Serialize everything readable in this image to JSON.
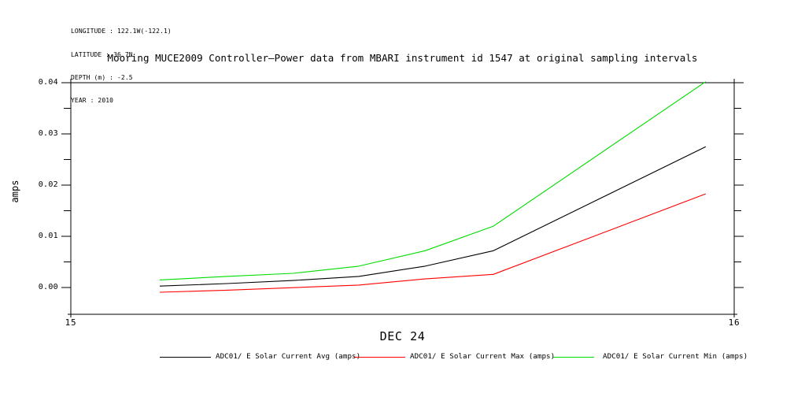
{
  "metadata": {
    "lines": [
      "LONGITUDE : 122.1W(-122.1)",
      "LATITUDE : 36.7N",
      "DEPTH (m) : -2.5",
      "YEAR : 2010"
    ]
  },
  "chart_data": {
    "type": "line",
    "title": "Mooring MUCE2009 Controller–Power data from MBARI instrument id 1547 at original sampling intervals",
    "ylabel": "amps",
    "xlabel": "DEC 24",
    "xlim": [
      15,
      16
    ],
    "ylim": [
      -0.0052,
      0.04
    ],
    "grid": false,
    "legend_position": "bottom",
    "x_ticks": [
      {
        "value": 15,
        "label": "15"
      },
      {
        "value": 16,
        "label": "16"
      }
    ],
    "y_ticks": [
      {
        "value": 0.0,
        "label": "0.00"
      },
      {
        "value": 0.01,
        "label": "0.01"
      },
      {
        "value": 0.02,
        "label": "0.02"
      },
      {
        "value": 0.03,
        "label": "0.03"
      },
      {
        "value": 0.04,
        "label": "0.04"
      }
    ],
    "y_minor_tick_step": 0.005,
    "x": [
      15.134,
      15.235,
      15.335,
      15.434,
      15.534,
      15.637,
      15.957
    ],
    "series": [
      {
        "name": "ADC01/ E Solar Current Avg (amps)",
        "color": "#000000",
        "values": [
          0.0003,
          0.0008,
          0.0014,
          0.0022,
          0.0042,
          0.0072,
          0.0275
        ]
      },
      {
        "name": "ADC01/ E Solar Current Max (amps)",
        "color": "#ff0000",
        "values": [
          -0.0009,
          -0.0005,
          0.0,
          0.0005,
          0.0017,
          0.0026,
          0.0183
        ]
      },
      {
        "name": "ADC01/ E Solar Current Min (amps)",
        "color": "#00dd00",
        "values": [
          0.0015,
          0.0022,
          0.0028,
          0.0042,
          0.0072,
          0.012,
          0.0402
        ]
      }
    ]
  }
}
